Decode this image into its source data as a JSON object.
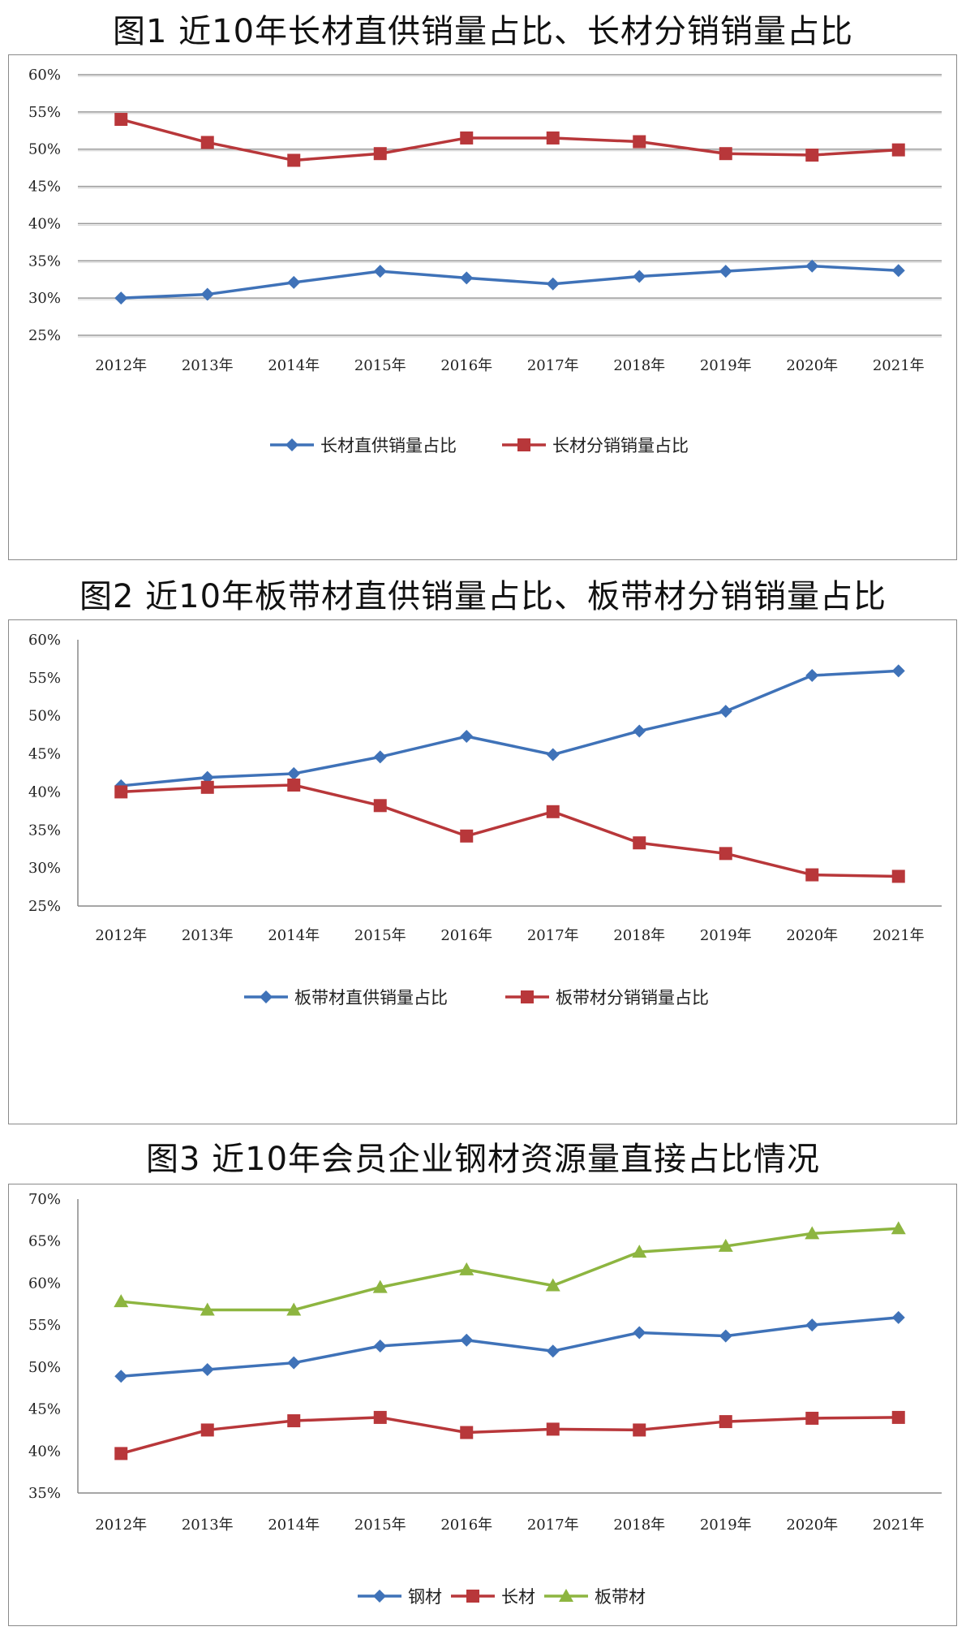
{
  "colors": {
    "blue": "#3f72b8",
    "red": "#b8373a",
    "green": "#8db540",
    "grid": "#9a9a9a",
    "axis": "#888888"
  },
  "chart_data": [
    {
      "type": "line",
      "title": "图1 近10年长材直供销量占比、长材分销销量占比",
      "categories": [
        "2012年",
        "2013年",
        "2014年",
        "2015年",
        "2016年",
        "2017年",
        "2018年",
        "2019年",
        "2020年",
        "2021年"
      ],
      "ylim": [
        25,
        60
      ],
      "yticks": [
        "25%",
        "30%",
        "35%",
        "40%",
        "45%",
        "50%",
        "55%",
        "60%"
      ],
      "grid": true,
      "legend": "bottom",
      "series": [
        {
          "name": "长材直供销量占比",
          "color": "blue",
          "marker": "diamond",
          "values": [
            30.0,
            30.5,
            32.1,
            33.6,
            32.7,
            31.9,
            32.9,
            33.6,
            34.3,
            33.7
          ]
        },
        {
          "name": "长材分销销量占比",
          "color": "red",
          "marker": "square",
          "values": [
            54.0,
            50.9,
            48.5,
            49.4,
            51.5,
            51.5,
            51.0,
            49.4,
            49.2,
            49.9
          ]
        }
      ]
    },
    {
      "type": "line",
      "title": "图2 近10年板带材直供销量占比、板带材分销销量占比",
      "categories": [
        "2012年",
        "2013年",
        "2014年",
        "2015年",
        "2016年",
        "2017年",
        "2018年",
        "2019年",
        "2020年",
        "2021年"
      ],
      "ylim": [
        25,
        60
      ],
      "yticks": [
        "25%",
        "30%",
        "35%",
        "40%",
        "45%",
        "50%",
        "55%",
        "60%"
      ],
      "grid": false,
      "legend": "bottom",
      "series": [
        {
          "name": "板带材直供销量占比",
          "color": "blue",
          "marker": "diamond",
          "values": [
            40.8,
            41.9,
            42.4,
            44.6,
            47.3,
            44.9,
            48.0,
            50.6,
            55.3,
            55.9
          ]
        },
        {
          "name": "板带材分销销量占比",
          "color": "red",
          "marker": "square",
          "values": [
            40.0,
            40.6,
            40.9,
            38.2,
            34.2,
            37.4,
            33.3,
            31.9,
            29.1,
            28.9
          ]
        }
      ]
    },
    {
      "type": "line",
      "title": "图3 近10年会员企业钢材资源量直接占比情况",
      "categories": [
        "2012年",
        "2013年",
        "2014年",
        "2015年",
        "2016年",
        "2017年",
        "2018年",
        "2019年",
        "2020年",
        "2021年"
      ],
      "ylim": [
        35,
        70
      ],
      "yticks": [
        "35%",
        "40%",
        "45%",
        "50%",
        "55%",
        "60%",
        "65%",
        "70%"
      ],
      "grid": false,
      "legend": "bottom",
      "series": [
        {
          "name": "钢材",
          "color": "blue",
          "marker": "diamond",
          "values": [
            48.9,
            49.7,
            50.5,
            52.5,
            53.2,
            51.9,
            54.1,
            53.7,
            55.0,
            55.9
          ]
        },
        {
          "name": "长材",
          "color": "red",
          "marker": "square",
          "values": [
            39.7,
            42.5,
            43.6,
            44.0,
            42.2,
            42.6,
            42.5,
            43.5,
            43.9,
            44.0
          ]
        },
        {
          "name": "板带材",
          "color": "green",
          "marker": "triangle",
          "values": [
            57.8,
            56.8,
            56.8,
            59.5,
            61.6,
            59.7,
            63.7,
            64.4,
            65.9,
            66.5
          ]
        }
      ]
    }
  ]
}
